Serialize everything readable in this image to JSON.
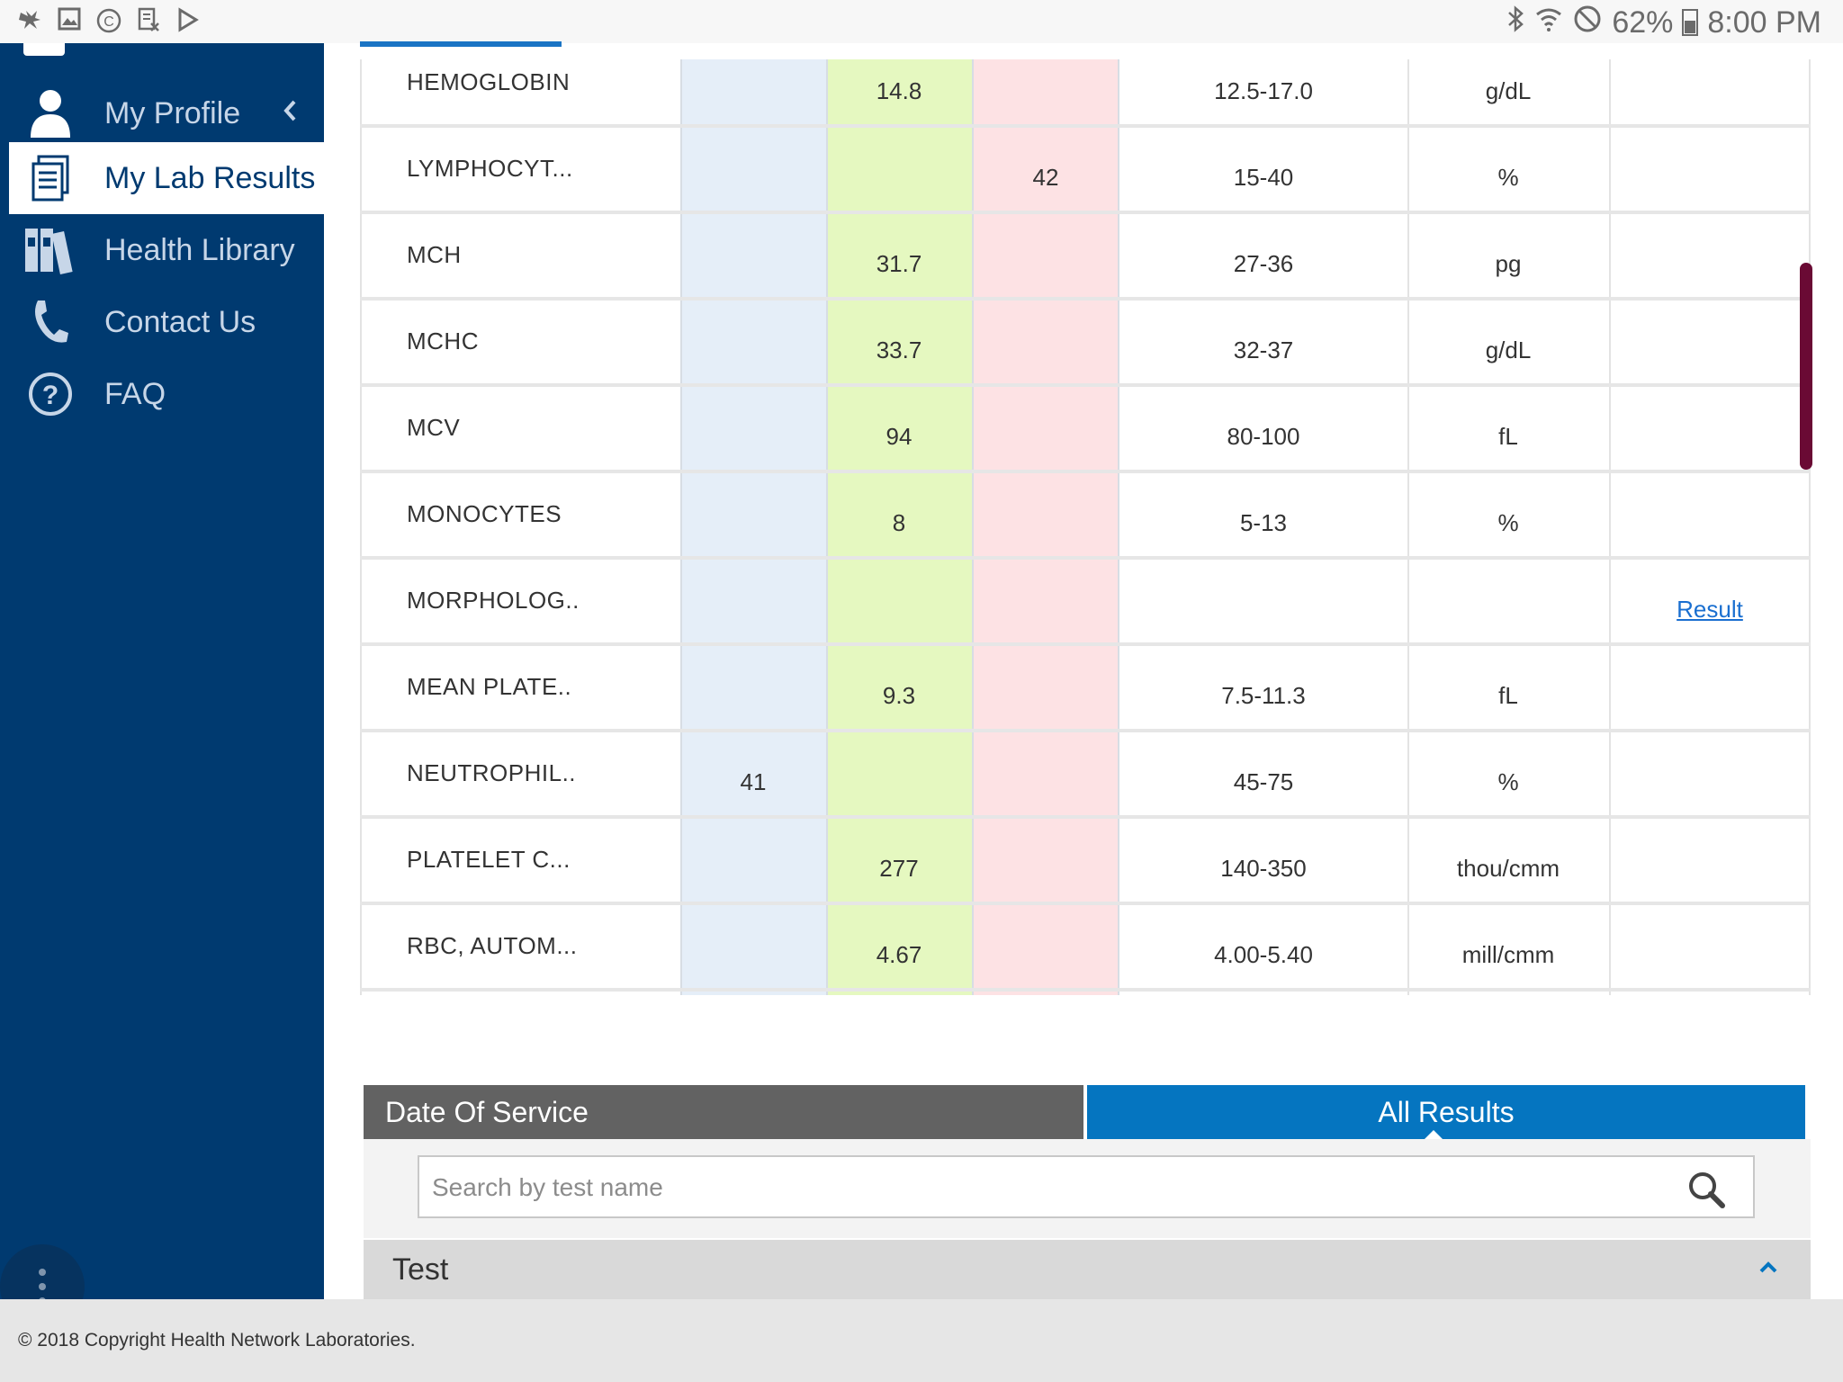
{
  "status_bar": {
    "battery": "62%",
    "time": "8:00 PM",
    "icons": [
      "notification-icon",
      "image-icon",
      "copyright-icon",
      "document-icon",
      "play-store-icon",
      "bluetooth-icon",
      "wifi-icon",
      "do-not-disturb-icon",
      "battery-icon"
    ]
  },
  "sidebar": {
    "items": [
      {
        "label": "My Profile",
        "icon": "person-icon"
      },
      {
        "label": "My Lab Results",
        "icon": "document-icon"
      },
      {
        "label": "Health Library",
        "icon": "books-icon"
      },
      {
        "label": "Contact Us",
        "icon": "phone-icon"
      },
      {
        "label": "FAQ",
        "icon": "question-icon"
      }
    ],
    "active": "My Lab Results"
  },
  "results": [
    {
      "test": "HEMOGLOBIN",
      "low": "",
      "normal": "14.8",
      "high": "",
      "range": "12.5-17.0",
      "unit": "g/dL",
      "link": ""
    },
    {
      "test": "LYMPHOCYT...",
      "low": "",
      "normal": "",
      "high": "42",
      "range": "15-40",
      "unit": "%",
      "link": ""
    },
    {
      "test": "MCH",
      "low": "",
      "normal": "31.7",
      "high": "",
      "range": "27-36",
      "unit": "pg",
      "link": ""
    },
    {
      "test": "MCHC",
      "low": "",
      "normal": "33.7",
      "high": "",
      "range": "32-37",
      "unit": "g/dL",
      "link": ""
    },
    {
      "test": "MCV",
      "low": "",
      "normal": "94",
      "high": "",
      "range": "80-100",
      "unit": "fL",
      "link": ""
    },
    {
      "test": "MONOCYTES",
      "low": "",
      "normal": "8",
      "high": "",
      "range": "5-13",
      "unit": "%",
      "link": ""
    },
    {
      "test": "MORPHOLOG..",
      "low": "",
      "normal": "",
      "high": "",
      "range": "",
      "unit": "",
      "link": "Result"
    },
    {
      "test": "MEAN PLATE..",
      "low": "",
      "normal": "9.3",
      "high": "",
      "range": "7.5-11.3",
      "unit": "fL",
      "link": ""
    },
    {
      "test": "NEUTROPHIL..",
      "low": "41",
      "normal": "",
      "high": "",
      "range": "45-75",
      "unit": "%",
      "link": ""
    },
    {
      "test": "PLATELET C...",
      "low": "",
      "normal": "277",
      "high": "",
      "range": "140-350",
      "unit": "thou/cmm",
      "link": ""
    },
    {
      "test": "RBC, AUTOM...",
      "low": "",
      "normal": "4.67",
      "high": "",
      "range": "4.00-5.40",
      "unit": "mill/cmm",
      "link": ""
    }
  ],
  "tabs": {
    "date_of_service": "Date Of Service",
    "all_results": "All Results"
  },
  "search": {
    "placeholder": "Search by test name",
    "value": ""
  },
  "test_section": {
    "title": "Test"
  },
  "footer": {
    "copyright": "© 2018 Copyright Health Network Laboratories."
  },
  "colors": {
    "sidebar": "#003a70",
    "low_column": "#e5eef8",
    "normal_column": "#e5f8c0",
    "high_column": "#fde2e4",
    "active_tab": "#0575c0",
    "inactive_tab": "#626262",
    "scrollbar": "#6a0a34"
  }
}
